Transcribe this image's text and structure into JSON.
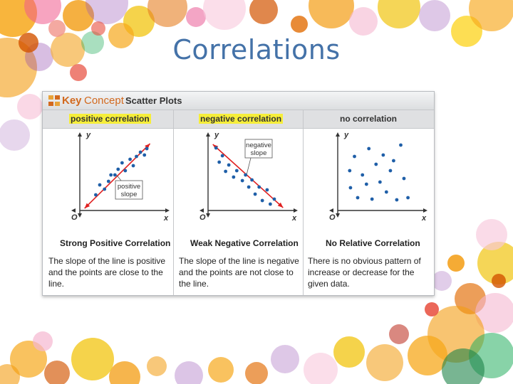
{
  "slide": {
    "title": "Correlations"
  },
  "card": {
    "brand_key": "Key",
    "brand_concept": "Concept",
    "topic": "Scatter Plots"
  },
  "colors": {
    "title": "#4472a8",
    "points": "#1f5fa8",
    "trend_line": "#e02020",
    "highlight": "#f6ee3a",
    "brand": "#d2691e"
  },
  "chart_data": [
    {
      "type": "scatter",
      "header": "positive correlation",
      "title": "Strong Positive Correlation",
      "description": "The slope of the line is positive and the points are close to the line.",
      "xlabel": "x",
      "ylabel": "y",
      "origin_label": "O",
      "xlim": [
        0,
        10
      ],
      "ylim": [
        0,
        10
      ],
      "trend_line": {
        "from": [
          0.6,
          0.3
        ],
        "to": [
          8.8,
          9.4
        ],
        "label": [
          "positive",
          "slope"
        ]
      },
      "points": [
        [
          2.0,
          2.2
        ],
        [
          2.5,
          3.6
        ],
        [
          3.1,
          3.0
        ],
        [
          3.6,
          4.1
        ],
        [
          3.9,
          5.0
        ],
        [
          4.4,
          5.0
        ],
        [
          4.8,
          5.8
        ],
        [
          5.3,
          6.7
        ],
        [
          5.7,
          5.6
        ],
        [
          6.3,
          7.2
        ],
        [
          6.7,
          6.3
        ],
        [
          7.1,
          7.6
        ],
        [
          7.6,
          8.2
        ],
        [
          8.1,
          7.8
        ],
        [
          8.4,
          8.7
        ]
      ]
    },
    {
      "type": "scatter",
      "header": "negative correlation",
      "title": "Weak Negative Correlation",
      "description": "The slope of the line is negative and the points are not close to the line.",
      "xlabel": "x",
      "ylabel": "y",
      "origin_label": "O",
      "xlim": [
        0,
        10
      ],
      "ylim": [
        0,
        10
      ],
      "trend_line": {
        "from": [
          0.6,
          9.3
        ],
        "to": [
          9.4,
          0.4
        ],
        "label": [
          "negative",
          "slope"
        ]
      },
      "points": [
        [
          1.0,
          8.8
        ],
        [
          1.4,
          6.8
        ],
        [
          1.8,
          7.7
        ],
        [
          2.2,
          5.5
        ],
        [
          2.6,
          6.4
        ],
        [
          3.2,
          4.7
        ],
        [
          3.6,
          5.6
        ],
        [
          4.3,
          4.2
        ],
        [
          4.7,
          5.0
        ],
        [
          5.1,
          3.3
        ],
        [
          5.5,
          4.3
        ],
        [
          5.9,
          2.3
        ],
        [
          6.4,
          3.3
        ],
        [
          6.8,
          1.4
        ],
        [
          7.4,
          2.9
        ],
        [
          7.8,
          0.9
        ],
        [
          8.3,
          1.6
        ]
      ]
    },
    {
      "type": "scatter",
      "header": "no correlation",
      "title": "No Relative Correlation",
      "description": "There is no obvious pattern of increase or decrease for the given data.",
      "xlabel": "x",
      "ylabel": "y",
      "origin_label": "O",
      "xlim": [
        0,
        10
      ],
      "ylim": [
        0,
        10
      ],
      "trend_line": null,
      "points": [
        [
          1.5,
          5.6
        ],
        [
          1.6,
          3.2
        ],
        [
          2.1,
          7.6
        ],
        [
          2.5,
          1.8
        ],
        [
          3.1,
          5.0
        ],
        [
          3.6,
          3.7
        ],
        [
          3.9,
          8.7
        ],
        [
          4.3,
          1.6
        ],
        [
          4.8,
          6.5
        ],
        [
          5.3,
          4.0
        ],
        [
          5.7,
          7.8
        ],
        [
          6.1,
          2.6
        ],
        [
          6.6,
          5.6
        ],
        [
          7.0,
          7.0
        ],
        [
          7.4,
          1.5
        ],
        [
          7.9,
          9.2
        ],
        [
          8.3,
          4.5
        ],
        [
          8.8,
          1.8
        ]
      ]
    }
  ]
}
